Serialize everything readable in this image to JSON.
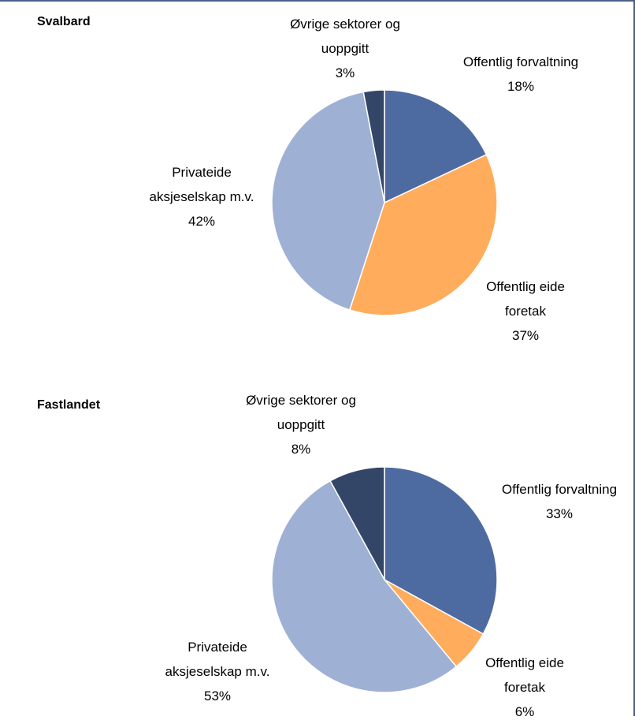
{
  "colors": {
    "offentlig_forvaltning": "#4e6ba1",
    "offentlig_eide_foretak": "#ffad5c",
    "privateide": "#9eb0d4",
    "ovrige": "#344667",
    "frame": "#4a5f8a"
  },
  "chart_data": [
    {
      "type": "pie",
      "title": "Svalbard",
      "slices": [
        {
          "name": "Offentlig forvaltning",
          "lines": [
            "Offentlig forvaltning"
          ],
          "value": 18,
          "pct_label": "18%"
        },
        {
          "name": "Offentlig eide foretak",
          "lines": [
            "Offentlig eide",
            "foretak"
          ],
          "value": 37,
          "pct_label": "37%"
        },
        {
          "name": "Privateide aksjeselskap m.v.",
          "lines": [
            "Privateide",
            "aksjeselskap m.v."
          ],
          "value": 42,
          "pct_label": "42%"
        },
        {
          "name": "Øvrige sektorer og uoppgitt",
          "lines": [
            "Øvrige sektorer og",
            "uoppgitt"
          ],
          "value": 3,
          "pct_label": "3%"
        }
      ]
    },
    {
      "type": "pie",
      "title": "Fastlandet",
      "slices": [
        {
          "name": "Offentlig forvaltning",
          "lines": [
            "Offentlig forvaltning"
          ],
          "value": 33,
          "pct_label": "33%"
        },
        {
          "name": "Offentlig eide foretak",
          "lines": [
            "Offentlig eide",
            "foretak"
          ],
          "value": 6,
          "pct_label": "6%"
        },
        {
          "name": "Privateide aksjeselskap m.v.",
          "lines": [
            "Privateide",
            "aksjeselskap m.v."
          ],
          "value": 53,
          "pct_label": "53%"
        },
        {
          "name": "Øvrige sektorer og uoppgitt",
          "lines": [
            "Øvrige sektorer og",
            "uoppgitt"
          ],
          "value": 8,
          "pct_label": "8%"
        }
      ]
    }
  ]
}
